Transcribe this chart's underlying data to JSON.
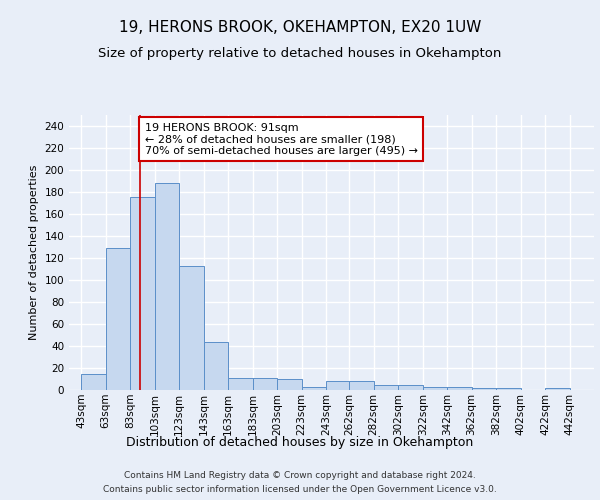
{
  "title1": "19, HERONS BROOK, OKEHAMPTON, EX20 1UW",
  "title2": "Size of property relative to detached houses in Okehampton",
  "xlabel": "Distribution of detached houses by size in Okehampton",
  "ylabel": "Number of detached properties",
  "categories": [
    "43sqm",
    "63sqm",
    "83sqm",
    "103sqm",
    "123sqm",
    "143sqm",
    "163sqm",
    "183sqm",
    "203sqm",
    "223sqm",
    "243sqm",
    "262sqm",
    "282sqm",
    "302sqm",
    "322sqm",
    "342sqm",
    "362sqm",
    "382sqm",
    "402sqm",
    "422sqm",
    "442sqm"
  ],
  "bar_centers": [
    53,
    73,
    93,
    113,
    133,
    153,
    173,
    193,
    213,
    233,
    253,
    272,
    292,
    312,
    332,
    352,
    372,
    392,
    412,
    432,
    452
  ],
  "bar_heights": [
    15,
    129,
    175,
    188,
    113,
    44,
    11,
    11,
    10,
    3,
    8,
    8,
    5,
    5,
    3,
    3,
    2,
    2,
    0,
    2,
    0
  ],
  "bar_color": "#c6d8ef",
  "bar_edge_color": "#5b8fc9",
  "vline_x": 91,
  "vline_color": "#cc0000",
  "annotation_text": "19 HERONS BROOK: 91sqm\n← 28% of detached houses are smaller (198)\n70% of semi-detached houses are larger (495) →",
  "annotation_box_color": "white",
  "annotation_box_edge_color": "#cc0000",
  "ylim": [
    0,
    250
  ],
  "yticks": [
    0,
    20,
    40,
    60,
    80,
    100,
    120,
    140,
    160,
    180,
    200,
    220,
    240
  ],
  "xtick_positions": [
    43,
    63,
    83,
    103,
    123,
    143,
    163,
    183,
    203,
    223,
    243,
    262,
    282,
    302,
    322,
    342,
    362,
    382,
    402,
    422,
    442
  ],
  "footer1": "Contains HM Land Registry data © Crown copyright and database right 2024.",
  "footer2": "Contains public sector information licensed under the Open Government Licence v3.0.",
  "background_color": "#e8eef8",
  "plot_background_color": "#e8eef8",
  "grid_color": "#ffffff",
  "title1_fontsize": 11,
  "title2_fontsize": 9.5,
  "xlabel_fontsize": 9,
  "ylabel_fontsize": 8,
  "tick_fontsize": 7.5,
  "annotation_fontsize": 8,
  "footer_fontsize": 6.5
}
